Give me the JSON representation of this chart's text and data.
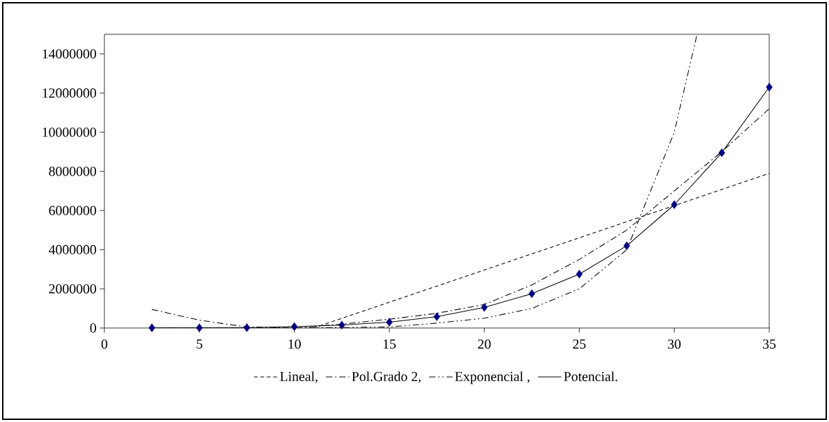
{
  "chart_data": {
    "type": "scatter",
    "xlim": [
      0,
      35
    ],
    "ylim": [
      0,
      15000000
    ],
    "xticks": [
      0,
      5,
      10,
      15,
      20,
      25,
      30,
      35
    ],
    "yticks": [
      0,
      2000000,
      4000000,
      6000000,
      8000000,
      10000000,
      12000000,
      14000000
    ],
    "legend": "bottom",
    "series": [
      {
        "color": "#000080",
        "marker": "diamond",
        "x": [
          2.5,
          5,
          7.5,
          10,
          12.5,
          15,
          17.5,
          20,
          22.5,
          25,
          27.5,
          30,
          32.5,
          35
        ],
        "values": [
          10000,
          10000,
          20000,
          70000,
          150000,
          300000,
          580000,
          1050000,
          1750000,
          2750000,
          4200000,
          6300000,
          8950000,
          12300000
        ]
      },
      {
        "type": "line",
        "name": "Lineal,",
        "color": "#000000",
        "line_style": "dashed",
        "marker": "none",
        "x": [
          11,
          35
        ],
        "values": [
          0,
          7900000
        ]
      },
      {
        "type": "line",
        "name": "Pol.Grado 2,",
        "color": "#000000",
        "line_style": "dashdot",
        "marker": "none",
        "x": [
          2.5,
          5,
          7.5,
          10,
          12.5,
          15,
          17.5,
          20,
          22.5,
          25,
          27.5,
          30,
          32.5,
          35
        ],
        "values": [
          950000,
          400000,
          50000,
          0,
          200000,
          450000,
          750000,
          1200000,
          2200000,
          3500000,
          5000000,
          7000000,
          9000000,
          11200000
        ]
      },
      {
        "type": "line",
        "name": "Exponencial ,",
        "color": "#000000",
        "line_style": "dashdotdot",
        "marker": "none",
        "x": [
          2.5,
          10,
          15,
          17.5,
          20,
          22.5,
          25,
          27.5,
          30,
          31.2
        ],
        "values": [
          0,
          0,
          50000,
          250000,
          500000,
          1000000,
          2000000,
          4000000,
          10000000,
          15000000
        ]
      },
      {
        "type": "line",
        "name": "Potencial.",
        "color": "#000000",
        "line_style": "solid",
        "marker": "none",
        "x": [
          2.5,
          5,
          7.5,
          10,
          12.5,
          15,
          17.5,
          20,
          22.5,
          25,
          27.5,
          30,
          32.5,
          35
        ],
        "values": [
          10000,
          10000,
          20000,
          70000,
          150000,
          300000,
          580000,
          1050000,
          1750000,
          2750000,
          4200000,
          6300000,
          8950000,
          12300000
        ]
      }
    ]
  }
}
